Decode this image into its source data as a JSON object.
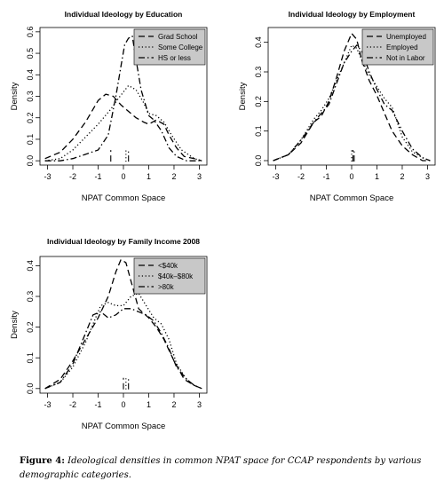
{
  "chart_data": [
    {
      "type": "line",
      "title": "Individual Ideology by Education",
      "xlabel": "NPAT Common Space",
      "ylabel": "Density",
      "xlim": [
        -3.3,
        3.3
      ],
      "ylim": [
        -0.02,
        0.62
      ],
      "xticks": [
        -3,
        -2,
        -1,
        0,
        1,
        2,
        3
      ],
      "yticks": [
        0.0,
        0.1,
        0.2,
        0.3,
        0.4,
        0.5,
        0.6
      ],
      "ytick_labels": [
        "0.0",
        "0.1",
        "0.2",
        "0.3",
        "0.4",
        "0.5",
        "0.6"
      ],
      "legend_position": "top-right",
      "series": [
        {
          "name": "Grad School",
          "style": "dashed",
          "x": [
            -3.1,
            -2.5,
            -2.0,
            -1.5,
            -1.0,
            -0.7,
            -0.4,
            -0.1,
            0.2,
            0.5,
            0.8,
            1.0,
            1.3,
            1.6,
            1.8,
            2.1,
            2.4,
            2.8,
            3.1
          ],
          "y": [
            0.01,
            0.04,
            0.1,
            0.18,
            0.28,
            0.31,
            0.3,
            0.26,
            0.23,
            0.2,
            0.18,
            0.17,
            0.19,
            0.17,
            0.12,
            0.06,
            0.02,
            0.01,
            0.0
          ],
          "rug": [
            -0.5
          ]
        },
        {
          "name": "Some College",
          "style": "dotted",
          "x": [
            -3.1,
            -2.5,
            -2.0,
            -1.5,
            -1.0,
            -0.5,
            -0.2,
            0.2,
            0.5,
            0.8,
            1.0,
            1.3,
            1.6,
            1.9,
            2.3,
            2.8,
            3.1
          ],
          "y": [
            0.0,
            0.01,
            0.05,
            0.11,
            0.17,
            0.24,
            0.29,
            0.35,
            0.33,
            0.27,
            0.22,
            0.21,
            0.18,
            0.12,
            0.05,
            0.01,
            0.0
          ],
          "rug": [
            0.1
          ]
        },
        {
          "name": "HS or less",
          "style": "dotdash",
          "x": [
            -3.1,
            -2.5,
            -2.0,
            -1.5,
            -1.0,
            -0.6,
            -0.3,
            -0.1,
            0.05,
            0.2,
            0.35,
            0.5,
            0.7,
            1.0,
            1.2,
            1.5,
            1.8,
            2.1,
            2.5,
            3.0
          ],
          "y": [
            0.0,
            0.0,
            0.01,
            0.03,
            0.05,
            0.12,
            0.3,
            0.44,
            0.54,
            0.57,
            0.58,
            0.47,
            0.33,
            0.21,
            0.19,
            0.14,
            0.06,
            0.02,
            0.0,
            0.0
          ],
          "rug": [
            0.2
          ]
        }
      ]
    },
    {
      "type": "line",
      "title": "Individual Ideology by Employment",
      "xlabel": "NPAT Common Space",
      "ylabel": "Density",
      "xlim": [
        -3.3,
        3.3
      ],
      "ylim": [
        -0.015,
        0.45
      ],
      "xticks": [
        -3,
        -2,
        -1,
        0,
        1,
        2,
        3
      ],
      "yticks": [
        0.0,
        0.1,
        0.2,
        0.3,
        0.4
      ],
      "ytick_labels": [
        "0.0",
        "0.1",
        "0.2",
        "0.3",
        "0.4"
      ],
      "legend_position": "top-right",
      "series": [
        {
          "name": "Unemployed",
          "style": "dashed",
          "x": [
            -3.1,
            -2.5,
            -2.0,
            -1.5,
            -1.2,
            -0.9,
            -0.6,
            -0.3,
            0.0,
            0.2,
            0.4,
            0.7,
            1.0,
            1.3,
            1.6,
            2.0,
            2.4,
            2.8,
            3.1
          ],
          "y": [
            0.0,
            0.02,
            0.06,
            0.13,
            0.15,
            0.2,
            0.28,
            0.37,
            0.43,
            0.41,
            0.34,
            0.27,
            0.22,
            0.16,
            0.1,
            0.05,
            0.02,
            0.0,
            0.0
          ],
          "rug": [
            0.05
          ]
        },
        {
          "name": "Employed",
          "style": "dotted",
          "x": [
            -3.1,
            -2.5,
            -2.0,
            -1.5,
            -1.2,
            -0.9,
            -0.6,
            -0.3,
            0.0,
            0.2,
            0.4,
            0.7,
            1.0,
            1.3,
            1.6,
            2.0,
            2.4,
            2.8,
            3.1
          ],
          "y": [
            0.0,
            0.02,
            0.07,
            0.14,
            0.17,
            0.21,
            0.27,
            0.33,
            0.39,
            0.38,
            0.34,
            0.29,
            0.25,
            0.21,
            0.18,
            0.08,
            0.03,
            0.01,
            0.0
          ],
          "rug": [
            0.0
          ]
        },
        {
          "name": "Not in Labor",
          "style": "dotdash",
          "x": [
            -3.1,
            -2.5,
            -2.0,
            -1.5,
            -1.2,
            -0.9,
            -0.6,
            -0.3,
            0.0,
            0.2,
            0.4,
            0.7,
            1.0,
            1.3,
            1.6,
            2.0,
            2.4,
            2.8,
            3.1
          ],
          "y": [
            0.0,
            0.02,
            0.07,
            0.13,
            0.16,
            0.19,
            0.26,
            0.33,
            0.37,
            0.39,
            0.37,
            0.3,
            0.24,
            0.19,
            0.17,
            0.1,
            0.04,
            0.01,
            0.0
          ],
          "rug": [
            0.1
          ]
        }
      ]
    },
    {
      "type": "line",
      "title": "Individual Ideology by Family Income 2008",
      "xlabel": "NPAT Common Space",
      "ylabel": "Density",
      "xlim": [
        -3.3,
        3.3
      ],
      "ylim": [
        -0.015,
        0.43
      ],
      "xticks": [
        -3,
        -2,
        -1,
        0,
        1,
        2,
        3
      ],
      "yticks": [
        0.0,
        0.1,
        0.2,
        0.3,
        0.4
      ],
      "ytick_labels": [
        "0.0",
        "0.1",
        "0.2",
        "0.3",
        "0.4"
      ],
      "legend_position": "top-right",
      "series": [
        {
          "name": "<$40k",
          "style": "dashed",
          "x": [
            -3.1,
            -2.5,
            -2.0,
            -1.5,
            -1.0,
            -0.6,
            -0.3,
            -0.1,
            0.1,
            0.3,
            0.6,
            1.0,
            1.3,
            1.6,
            2.0,
            2.4,
            2.8,
            3.1
          ],
          "y": [
            0.0,
            0.03,
            0.09,
            0.16,
            0.23,
            0.3,
            0.38,
            0.42,
            0.41,
            0.35,
            0.26,
            0.23,
            0.2,
            0.16,
            0.09,
            0.03,
            0.01,
            0.0
          ],
          "rug": [
            0.0
          ]
        },
        {
          "name": "$40k–$80k",
          "style": "dotted",
          "x": [
            -3.1,
            -2.5,
            -2.0,
            -1.5,
            -1.2,
            -0.9,
            -0.6,
            -0.3,
            0.0,
            0.3,
            0.6,
            0.9,
            1.2,
            1.5,
            1.8,
            2.1,
            2.5,
            2.8,
            3.1
          ],
          "y": [
            0.0,
            0.02,
            0.07,
            0.15,
            0.21,
            0.27,
            0.28,
            0.27,
            0.27,
            0.3,
            0.31,
            0.27,
            0.23,
            0.21,
            0.16,
            0.08,
            0.03,
            0.01,
            0.0
          ],
          "rug": [
            0.1
          ]
        },
        {
          "name": ">80k",
          "style": "dotdash",
          "x": [
            -3.1,
            -2.5,
            -2.0,
            -1.5,
            -1.2,
            -0.9,
            -0.6,
            -0.3,
            0.0,
            0.3,
            0.6,
            0.9,
            1.2,
            1.5,
            1.8,
            2.1,
            2.5,
            2.8,
            3.1
          ],
          "y": [
            0.0,
            0.02,
            0.08,
            0.18,
            0.24,
            0.25,
            0.23,
            0.24,
            0.26,
            0.26,
            0.25,
            0.24,
            0.22,
            0.18,
            0.13,
            0.07,
            0.03,
            0.01,
            0.0
          ],
          "rug": [
            0.2
          ]
        }
      ]
    }
  ],
  "caption": {
    "label": "Figure 4:",
    "text": "Ideological densities in common NPAT space for CCAP respondents by various demographic categories."
  }
}
